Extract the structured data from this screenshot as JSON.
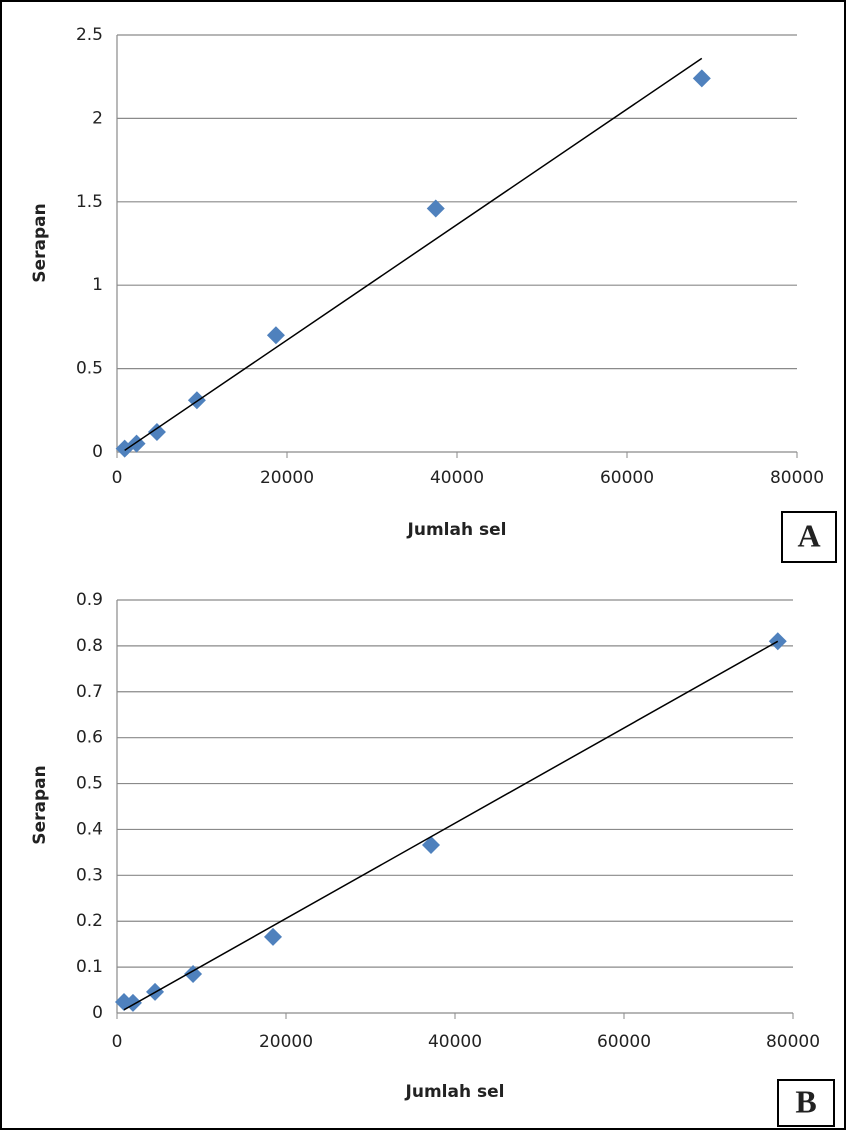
{
  "chart_data": [
    {
      "type": "scatter",
      "panel_label": "A",
      "x_label": "Jumlah sel",
      "y_label": "Serapan",
      "x": [
        900,
        2300,
        4700,
        9400,
        18700,
        37500,
        68800
      ],
      "values": [
        0.02,
        0.05,
        0.12,
        0.31,
        0.7,
        1.46,
        2.24
      ],
      "color": "#4f81bd",
      "trendline": {
        "x": [
          900,
          68800
        ],
        "y": [
          0.01,
          2.36
        ]
      },
      "xlim": [
        0,
        80000
      ],
      "xticks": [
        0,
        20000,
        40000,
        60000,
        80000
      ],
      "ylim": [
        0,
        2.5
      ],
      "yticks": [
        0,
        0.5,
        1,
        1.5,
        2,
        2.5
      ],
      "grid": true
    },
    {
      "type": "scatter",
      "panel_label": "B",
      "x_label": "Jumlah sel",
      "y_label": "Serapan",
      "x": [
        830,
        1890,
        4500,
        9000,
        18460,
        37160,
        78200
      ],
      "values": [
        0.024,
        0.022,
        0.046,
        0.085,
        0.166,
        0.366,
        0.81
      ],
      "color": "#4f81bd",
      "trendline": {
        "x": [
          830,
          78200
        ],
        "y": [
          0.007,
          0.81
        ]
      },
      "xlim": [
        0,
        80000
      ],
      "xticks": [
        0,
        20000,
        40000,
        60000,
        80000
      ],
      "ylim": [
        0,
        0.9
      ],
      "yticks": [
        0,
        0.1,
        0.2,
        0.3,
        0.4,
        0.5,
        0.6,
        0.7,
        0.8,
        0.9
      ],
      "grid": true
    }
  ]
}
